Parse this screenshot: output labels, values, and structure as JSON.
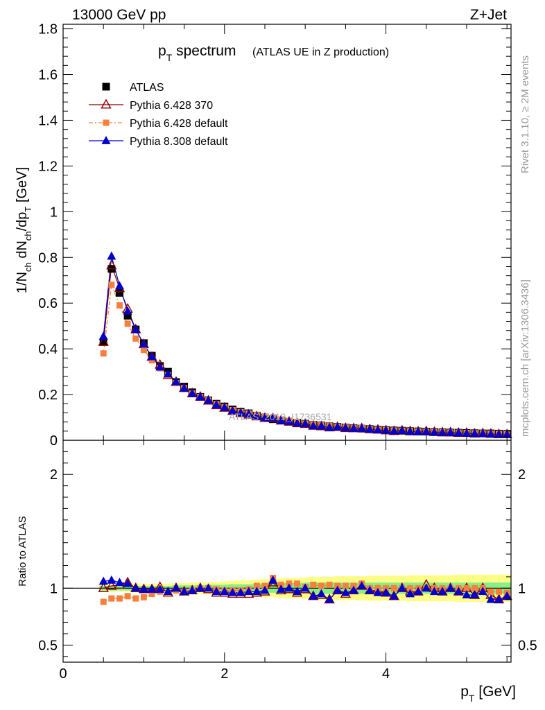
{
  "header": {
    "energy_label": "13000 GeV pp",
    "process_label": "Z+Jet"
  },
  "side_labels": {
    "rivet": "Rivet 3.1.10, ≥ 2M events",
    "mcplots": "mcplots.cern.ch [arXiv:1306.3436]"
  },
  "watermark": "ATLAS_2019_I1736531",
  "colors": {
    "atlas": "#000000",
    "p6_370": "#8b0000",
    "p6_default": "#f5803e",
    "p8_default": "#0000cc",
    "band_inner": "#88ee88",
    "band_outer": "#ffff88"
  },
  "chart_data": [
    {
      "type": "scatter",
      "title": "p_T spectrum",
      "title_main": "p",
      "title_sub": "T",
      "title_rest": " spectrum",
      "title_note": "(ATLAS UE in Z production)",
      "ylabel": "1/N_ch dN_ch/dp_T [GeV]",
      "ylabel_parts": [
        "1/N",
        "ch",
        " dN",
        "ch",
        "/dp",
        "T",
        " [GeV]"
      ],
      "xlim": [
        0,
        5.55
      ],
      "ylim": [
        0,
        1.82
      ],
      "y_ticks": [
        0,
        0.2,
        0.4,
        0.6,
        0.8,
        1,
        1.2,
        1.4,
        1.6,
        1.8
      ],
      "y_tick_labels": [
        "0",
        "0.2",
        "0.4",
        "0.6",
        "0.8",
        "1",
        "1.2",
        "1.4",
        "1.6",
        "1.8"
      ],
      "legend_position": "top-left",
      "x": [
        0.5,
        0.6,
        0.7,
        0.8,
        0.9,
        1.0,
        1.1,
        1.2,
        1.3,
        1.4,
        1.5,
        1.6,
        1.7,
        1.8,
        1.9,
        2.0,
        2.1,
        2.2,
        2.3,
        2.4,
        2.5,
        2.6,
        2.7,
        2.8,
        2.9,
        3.0,
        3.1,
        3.2,
        3.3,
        3.4,
        3.5,
        3.6,
        3.7,
        3.8,
        3.9,
        4.0,
        4.1,
        4.2,
        4.3,
        4.4,
        4.5,
        4.6,
        4.7,
        4.8,
        4.9,
        5.0,
        5.1,
        5.2,
        5.3,
        5.4,
        5.5
      ],
      "series": [
        {
          "name": "ATLAS",
          "key": "atlas",
          "marker": "square",
          "values": [
            0.43,
            0.75,
            0.645,
            0.545,
            0.485,
            0.425,
            0.37,
            0.325,
            0.3,
            0.255,
            0.235,
            0.21,
            0.19,
            0.175,
            0.16,
            0.148,
            0.135,
            0.125,
            0.118,
            0.108,
            0.1,
            0.092,
            0.087,
            0.082,
            0.077,
            0.072,
            0.068,
            0.065,
            0.062,
            0.059,
            0.056,
            0.053,
            0.051,
            0.049,
            0.047,
            0.045,
            0.043,
            0.042,
            0.04,
            0.039,
            0.038,
            0.036,
            0.035,
            0.034,
            0.033,
            0.032,
            0.031,
            0.03,
            0.03,
            0.029,
            0.028
          ]
        },
        {
          "name": "Pythia 6.428 370",
          "key": "p6_370",
          "marker": "open-triangle",
          "values": [
            0.43,
            0.765,
            0.665,
            0.575,
            0.485,
            0.42,
            0.365,
            0.33,
            0.285,
            0.255,
            0.228,
            0.205,
            0.19,
            0.173,
            0.153,
            0.142,
            0.128,
            0.119,
            0.112,
            0.104,
            0.097,
            0.096,
            0.086,
            0.081,
            0.074,
            0.071,
            0.063,
            0.061,
            0.056,
            0.058,
            0.053,
            0.052,
            0.052,
            0.048,
            0.046,
            0.043,
            0.04,
            0.042,
            0.039,
            0.038,
            0.039,
            0.036,
            0.034,
            0.034,
            0.032,
            0.032,
            0.029,
            0.03,
            0.028,
            0.026,
            0.026
          ]
        },
        {
          "name": "Pythia 6.428 default",
          "key": "p6_default",
          "marker": "filled-square-small",
          "values": [
            0.38,
            0.68,
            0.59,
            0.51,
            0.445,
            0.395,
            0.35,
            0.315,
            0.285,
            0.25,
            0.228,
            0.205,
            0.19,
            0.175,
            0.158,
            0.145,
            0.132,
            0.123,
            0.117,
            0.11,
            0.102,
            0.1,
            0.09,
            0.085,
            0.08,
            0.073,
            0.07,
            0.066,
            0.064,
            0.06,
            0.057,
            0.054,
            0.053,
            0.049,
            0.047,
            0.045,
            0.043,
            0.042,
            0.04,
            0.039,
            0.038,
            0.036,
            0.035,
            0.034,
            0.033,
            0.032,
            0.031,
            0.03,
            0.029,
            0.028,
            0.027
          ]
        },
        {
          "name": "Pythia 8.308 default",
          "key": "p8_default",
          "marker": "filled-triangle",
          "values": [
            0.455,
            0.805,
            0.675,
            0.565,
            0.485,
            0.42,
            0.365,
            0.32,
            0.29,
            0.255,
            0.228,
            0.205,
            0.19,
            0.175,
            0.155,
            0.143,
            0.129,
            0.12,
            0.114,
            0.105,
            0.098,
            0.098,
            0.086,
            0.082,
            0.075,
            0.072,
            0.063,
            0.062,
            0.056,
            0.058,
            0.054,
            0.052,
            0.052,
            0.048,
            0.045,
            0.043,
            0.04,
            0.042,
            0.038,
            0.038,
            0.038,
            0.035,
            0.034,
            0.034,
            0.032,
            0.03,
            0.029,
            0.029,
            0.027,
            0.026,
            0.026
          ]
        }
      ]
    },
    {
      "type": "scatter",
      "ylabel": "Ratio to ATLAS",
      "xlabel": "p_T [GeV]",
      "xlabel_main": "p",
      "xlabel_sub": "T",
      "xlabel_rest": " [GeV]",
      "xlim": [
        0,
        5.55
      ],
      "ylim": [
        0.35,
        2.3
      ],
      "y_ticks": [
        0.5,
        1,
        2
      ],
      "y_tick_labels": [
        "0.5",
        "1",
        "2"
      ],
      "x_ticks": [
        0,
        2,
        4
      ],
      "x_tick_labels": [
        "0",
        "2",
        "4"
      ],
      "reference_line": 1,
      "x": [
        0.5,
        0.6,
        0.7,
        0.8,
        0.9,
        1.0,
        1.1,
        1.2,
        1.3,
        1.4,
        1.5,
        1.6,
        1.7,
        1.8,
        1.9,
        2.0,
        2.1,
        2.2,
        2.3,
        2.4,
        2.5,
        2.6,
        2.7,
        2.8,
        2.9,
        3.0,
        3.1,
        3.2,
        3.3,
        3.4,
        3.5,
        3.6,
        3.7,
        3.8,
        3.9,
        4.0,
        4.1,
        4.2,
        4.3,
        4.4,
        4.5,
        4.6,
        4.7,
        4.8,
        4.9,
        5.0,
        5.1,
        5.2,
        5.3,
        5.4,
        5.5
      ],
      "band_inner": {
        "lower": [
          0.98,
          0.98,
          0.98,
          0.98,
          0.98,
          0.98,
          0.98,
          0.98,
          0.98,
          0.975,
          0.975,
          0.975,
          0.975,
          0.97,
          0.97,
          0.97,
          0.965,
          0.965,
          0.965,
          0.96,
          0.96,
          0.96,
          0.955,
          0.955,
          0.955,
          0.95,
          0.95,
          0.95,
          0.95,
          0.95,
          0.95,
          0.95,
          0.95,
          0.95,
          0.95,
          0.95,
          0.95,
          0.95,
          0.95,
          0.95,
          0.95,
          0.95,
          0.95,
          0.95,
          0.95,
          0.95,
          0.95,
          0.95,
          0.95,
          0.95,
          0.95
        ],
        "upper": [
          1.02,
          1.02,
          1.02,
          1.02,
          1.02,
          1.02,
          1.02,
          1.02,
          1.02,
          1.025,
          1.025,
          1.025,
          1.025,
          1.03,
          1.03,
          1.03,
          1.035,
          1.035,
          1.035,
          1.04,
          1.04,
          1.04,
          1.045,
          1.045,
          1.045,
          1.05,
          1.05,
          1.05,
          1.05,
          1.05,
          1.05,
          1.05,
          1.05,
          1.05,
          1.05,
          1.05,
          1.05,
          1.05,
          1.05,
          1.05,
          1.05,
          1.05,
          1.05,
          1.05,
          1.05,
          1.05,
          1.05,
          1.05,
          1.05,
          1.05,
          1.05
        ]
      },
      "band_outer": {
        "lower": [
          0.97,
          0.97,
          0.97,
          0.97,
          0.96,
          0.96,
          0.96,
          0.96,
          0.96,
          0.955,
          0.955,
          0.95,
          0.95,
          0.945,
          0.945,
          0.94,
          0.935,
          0.93,
          0.93,
          0.925,
          0.92,
          0.92,
          0.915,
          0.91,
          0.91,
          0.905,
          0.9,
          0.9,
          0.9,
          0.895,
          0.895,
          0.895,
          0.895,
          0.89,
          0.89,
          0.89,
          0.89,
          0.89,
          0.885,
          0.885,
          0.885,
          0.885,
          0.885,
          0.885,
          0.88,
          0.88,
          0.88,
          0.88,
          0.88,
          0.88,
          0.88
        ],
        "upper": [
          1.03,
          1.03,
          1.03,
          1.03,
          1.04,
          1.04,
          1.04,
          1.04,
          1.04,
          1.045,
          1.045,
          1.05,
          1.05,
          1.055,
          1.055,
          1.06,
          1.065,
          1.07,
          1.07,
          1.075,
          1.08,
          1.08,
          1.085,
          1.09,
          1.09,
          1.095,
          1.1,
          1.1,
          1.1,
          1.105,
          1.105,
          1.105,
          1.105,
          1.11,
          1.11,
          1.11,
          1.11,
          1.11,
          1.115,
          1.115,
          1.115,
          1.115,
          1.115,
          1.115,
          1.12,
          1.12,
          1.12,
          1.12,
          1.12,
          1.12,
          1.12
        ]
      },
      "series": [
        {
          "name": "Pythia 6.428 370",
          "key": "p6_370",
          "marker": "open-triangle",
          "values": [
            1.0,
            1.02,
            1.03,
            1.05,
            1.0,
            0.99,
            0.99,
            1.01,
            0.96,
            1.0,
            0.97,
            0.98,
            1.0,
            0.99,
            0.96,
            0.96,
            0.95,
            0.95,
            0.95,
            0.96,
            0.97,
            1.05,
            0.98,
            0.99,
            0.96,
            0.99,
            0.93,
            0.94,
            0.9,
            0.98,
            0.95,
            0.98,
            1.02,
            0.98,
            0.98,
            0.96,
            0.93,
            1.0,
            0.97,
            0.97,
            1.03,
            1.0,
            0.97,
            1.0,
            0.97,
            1.0,
            0.94,
            1.0,
            0.94,
            0.9,
            0.93
          ]
        },
        {
          "name": "Pythia 6.428 default",
          "key": "p6_default",
          "marker": "filled-square-small",
          "values": [
            0.88,
            0.91,
            0.91,
            0.93,
            0.91,
            0.92,
            0.95,
            0.97,
            0.95,
            0.98,
            0.97,
            0.98,
            1.0,
            1.0,
            0.99,
            0.98,
            0.98,
            0.98,
            0.99,
            1.02,
            1.02,
            1.09,
            1.03,
            1.04,
            1.04,
            1.01,
            1.03,
            1.02,
            1.03,
            1.02,
            1.02,
            1.02,
            1.04,
            1.0,
            1.0,
            1.0,
            1.0,
            1.0,
            1.0,
            1.0,
            1.0,
            1.0,
            1.0,
            1.0,
            1.0,
            1.0,
            1.0,
            1.0,
            0.97,
            0.97,
            0.96
          ]
        },
        {
          "name": "Pythia 8.308 default",
          "key": "p8_default",
          "marker": "filled-triangle",
          "values": [
            1.06,
            1.07,
            1.05,
            1.04,
            1.0,
            0.99,
            0.99,
            0.99,
            0.97,
            1.0,
            0.97,
            0.98,
            1.0,
            1.0,
            0.97,
            0.97,
            0.96,
            0.96,
            0.97,
            0.97,
            0.98,
            1.07,
            0.99,
            1.0,
            0.97,
            1.0,
            0.93,
            0.95,
            0.9,
            0.98,
            0.96,
            0.98,
            1.02,
            0.98,
            0.96,
            0.96,
            0.93,
            1.0,
            0.95,
            0.97,
            1.0,
            0.97,
            0.97,
            1.0,
            0.97,
            0.94,
            0.94,
            0.97,
            0.9,
            0.9,
            0.93
          ]
        }
      ]
    }
  ]
}
